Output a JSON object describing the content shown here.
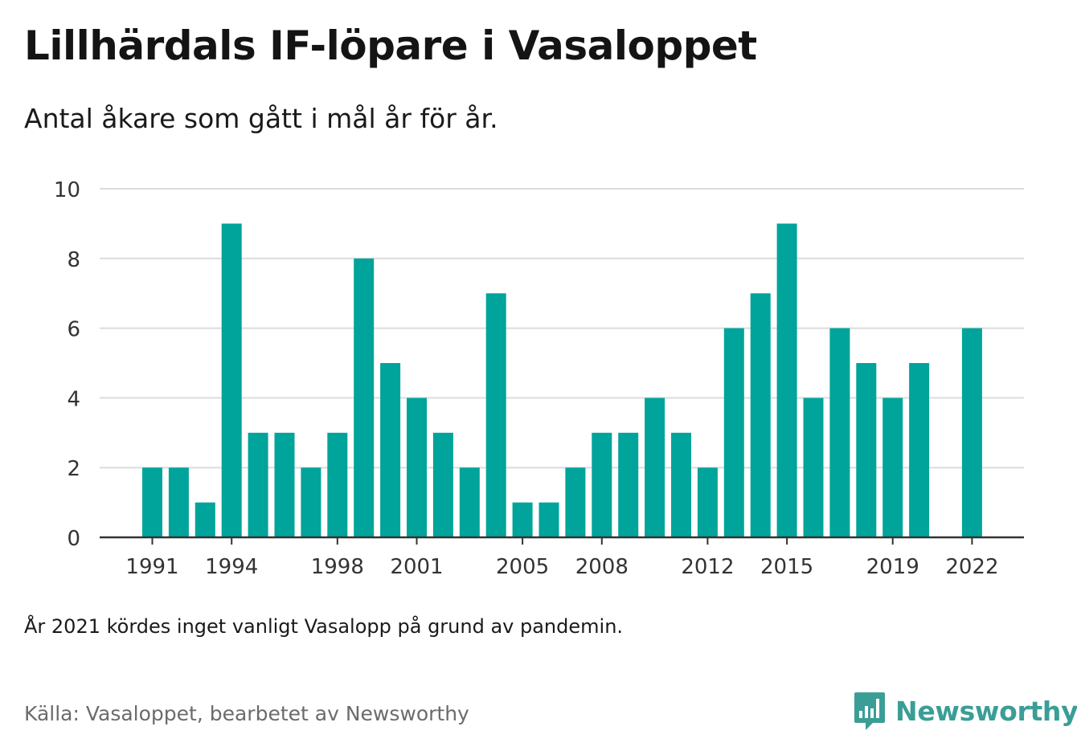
{
  "title": "Lillhärdals IF-löpare i Vasaloppet",
  "subtitle": "Antal åkare som gått i mål år för år.",
  "note": "År 2021 kördes inget vanligt Vasalopp på grund av pandemin.",
  "source": "Källa: Vasaloppet, bearbetet av Newsworthy",
  "brand": {
    "name": "Newsworthy",
    "icon": "newsworthy-logo-icon",
    "color": "#3a9e96"
  },
  "chart_data": {
    "type": "bar",
    "x": [
      1991,
      1992,
      1993,
      1994,
      1995,
      1996,
      1997,
      1998,
      1999,
      2000,
      2001,
      2002,
      2003,
      2004,
      2005,
      2006,
      2007,
      2008,
      2009,
      2010,
      2011,
      2012,
      2013,
      2014,
      2015,
      2016,
      2017,
      2018,
      2019,
      2020,
      2021,
      2022
    ],
    "values": [
      2,
      2,
      1,
      9,
      3,
      3,
      2,
      3,
      8,
      5,
      4,
      3,
      2,
      7,
      1,
      1,
      2,
      3,
      3,
      4,
      3,
      2,
      6,
      7,
      9,
      4,
      6,
      5,
      4,
      5,
      null,
      6
    ],
    "x_tick_labels": [
      "1991",
      "1994",
      "1998",
      "2001",
      "2005",
      "2008",
      "2012",
      "2015",
      "2019",
      "2022"
    ],
    "y_ticks": [
      0,
      2,
      4,
      6,
      8,
      10
    ],
    "ylim": [
      0,
      10
    ],
    "grid": "horizontal",
    "color": "#00a49a"
  }
}
